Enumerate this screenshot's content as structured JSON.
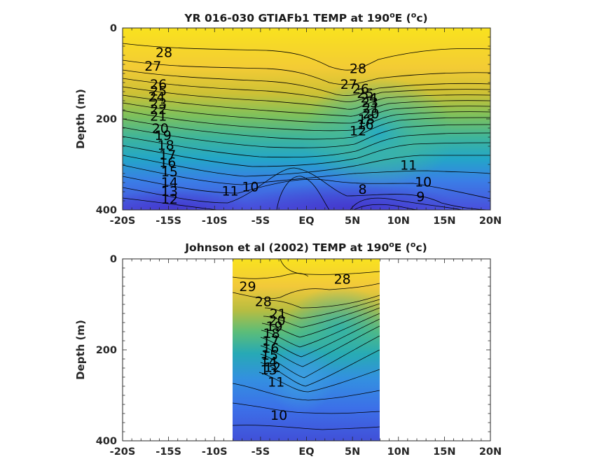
{
  "chart_data": [
    {
      "type": "heatmap",
      "title_main": "YR 016-030 GTIAFb1 TEMP at 190",
      "title_deg": "o",
      "title_unit_open": "E (",
      "title_unit_deg": "o",
      "title_unit_close": "c)",
      "ylabel": "Depth (m)",
      "xlim": [
        -20,
        20
      ],
      "ylim": [
        0,
        400
      ],
      "x_ticks": [
        -20,
        -15,
        -10,
        -5,
        0,
        5,
        10,
        15,
        20
      ],
      "x_tick_labels": [
        "-20S",
        "-15S",
        "-10S",
        "-5S",
        "EQ",
        "5N",
        "10N",
        "15N",
        "20N"
      ],
      "y_ticks": [
        0,
        200,
        400
      ],
      "y_tick_labels": [
        "0",
        "200",
        "400"
      ],
      "data_xlim": [
        -20,
        20
      ],
      "contour_levels": [
        8,
        9,
        10,
        11,
        12,
        13,
        14,
        15,
        16,
        17,
        18,
        19,
        20,
        21,
        22,
        23,
        24,
        25,
        26,
        27,
        28
      ],
      "contour_labels": [
        {
          "text": "28",
          "x": -15.5,
          "depth": 55
        },
        {
          "text": "27",
          "x": -16.7,
          "depth": 85
        },
        {
          "text": "26",
          "x": -16.1,
          "depth": 125
        },
        {
          "text": "25",
          "x": -16.1,
          "depth": 140
        },
        {
          "text": "24",
          "x": -16.3,
          "depth": 153
        },
        {
          "text": "23",
          "x": -16.1,
          "depth": 168
        },
        {
          "text": "22",
          "x": -16.1,
          "depth": 181
        },
        {
          "text": "21",
          "x": -16.1,
          "depth": 195
        },
        {
          "text": "20",
          "x": -15.9,
          "depth": 222
        },
        {
          "text": "19",
          "x": -15.6,
          "depth": 238
        },
        {
          "text": "18",
          "x": -15.3,
          "depth": 259
        },
        {
          "text": "17",
          "x": -15.1,
          "depth": 281
        },
        {
          "text": "16",
          "x": -15.1,
          "depth": 297
        },
        {
          "text": "15",
          "x": -14.9,
          "depth": 318
        },
        {
          "text": "14",
          "x": -14.9,
          "depth": 341
        },
        {
          "text": "13",
          "x": -14.9,
          "depth": 361
        },
        {
          "text": "12",
          "x": -14.9,
          "depth": 378
        },
        {
          "text": "11",
          "x": -8.3,
          "depth": 360
        },
        {
          "text": "10",
          "x": -6.1,
          "depth": 351
        },
        {
          "text": "28",
          "x": 5.6,
          "depth": 91
        },
        {
          "text": "27",
          "x": 4.6,
          "depth": 125
        },
        {
          "text": "26",
          "x": 5.9,
          "depth": 135
        },
        {
          "text": "25",
          "x": 6.4,
          "depth": 145
        },
        {
          "text": "24",
          "x": 6.8,
          "depth": 155
        },
        {
          "text": "23",
          "x": 6.9,
          "depth": 165
        },
        {
          "text": "21",
          "x": 7.0,
          "depth": 178
        },
        {
          "text": "20",
          "x": 7.0,
          "depth": 190
        },
        {
          "text": "18",
          "x": 6.5,
          "depth": 202
        },
        {
          "text": "16",
          "x": 6.4,
          "depth": 214
        },
        {
          "text": "12",
          "x": 5.6,
          "depth": 228
        },
        {
          "text": "11",
          "x": 11.1,
          "depth": 303
        },
        {
          "text": "10",
          "x": 12.7,
          "depth": 340
        },
        {
          "text": "9",
          "x": 12.4,
          "depth": 372
        },
        {
          "text": "8",
          "x": 6.1,
          "depth": 356
        }
      ]
    },
    {
      "type": "heatmap",
      "title_main": "Johnson et al (2002) TEMP at 190",
      "title_deg": "o",
      "title_unit_open": "E (",
      "title_unit_deg": "o",
      "title_unit_close": "c)",
      "ylabel": "Depth (m)",
      "xlim": [
        -20,
        20
      ],
      "ylim": [
        0,
        400
      ],
      "x_ticks": [
        -20,
        -15,
        -10,
        -5,
        0,
        5,
        10,
        15,
        20
      ],
      "x_tick_labels": [
        "-20S",
        "-15S",
        "-10S",
        "-5S",
        "EQ",
        "5N",
        "10N",
        "15N",
        "20N"
      ],
      "y_ticks": [
        0,
        200,
        400
      ],
      "y_tick_labels": [
        "0",
        "200",
        "400"
      ],
      "data_xlim": [
        -8,
        8
      ],
      "contour_levels": [
        10,
        11,
        12,
        13,
        14,
        15,
        16,
        17,
        18,
        19,
        20,
        21,
        22,
        23,
        24,
        25,
        26,
        27,
        28,
        29
      ],
      "contour_labels": [
        {
          "text": "29",
          "x": -6.4,
          "depth": 62
        },
        {
          "text": "28",
          "x": -4.7,
          "depth": 95
        },
        {
          "text": "28",
          "x": 3.9,
          "depth": 46
        },
        {
          "text": "21",
          "x": -3.1,
          "depth": 122
        },
        {
          "text": "20",
          "x": -3.2,
          "depth": 137
        },
        {
          "text": "19",
          "x": -3.5,
          "depth": 150
        },
        {
          "text": "18",
          "x": -3.8,
          "depth": 165
        },
        {
          "text": "17",
          "x": -3.9,
          "depth": 182
        },
        {
          "text": "16",
          "x": -3.9,
          "depth": 198
        },
        {
          "text": "15",
          "x": -4.0,
          "depth": 213
        },
        {
          "text": "14",
          "x": -4.1,
          "depth": 228
        },
        {
          "text": "13",
          "x": -4.1,
          "depth": 245
        },
        {
          "text": "12",
          "x": -3.7,
          "depth": 240
        },
        {
          "text": "11",
          "x": -3.3,
          "depth": 272
        },
        {
          "text": "10",
          "x": -3.0,
          "depth": 345
        }
      ]
    }
  ]
}
